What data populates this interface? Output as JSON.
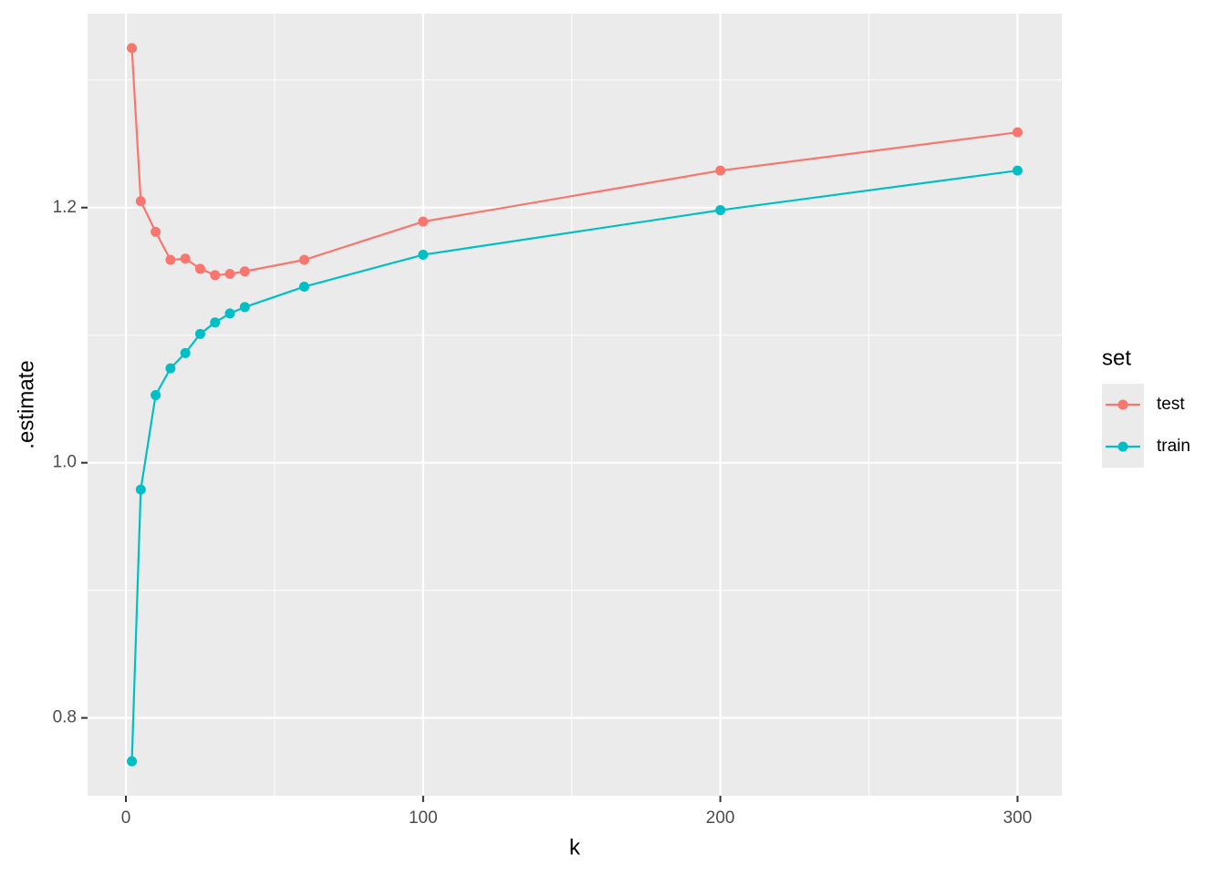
{
  "chart_data": {
    "type": "line",
    "x_label": "k",
    "y_label": ".estimate",
    "legend_title": "set",
    "x": [
      2,
      5,
      10,
      15,
      20,
      25,
      30,
      35,
      40,
      60,
      100,
      200,
      300
    ],
    "series": [
      {
        "name": "test",
        "color": "#F8766D",
        "values": [
          1.325,
          1.205,
          1.181,
          1.159,
          1.16,
          1.152,
          1.147,
          1.148,
          1.15,
          1.159,
          1.189,
          1.229,
          1.259
        ]
      },
      {
        "name": "train",
        "color": "#00BFC4",
        "values": [
          0.766,
          0.979,
          1.053,
          1.074,
          1.086,
          1.101,
          1.11,
          1.117,
          1.122,
          1.138,
          1.163,
          1.198,
          1.229
        ]
      }
    ],
    "xlim": [
      -12.9,
      314.9
    ],
    "xticks": [
      0,
      100,
      200,
      300
    ],
    "x_minor_ticks": [
      50,
      150,
      250
    ],
    "ylim": [
      0.739,
      1.352
    ],
    "yticks": [
      {
        "value": 0.8,
        "label": "0.8"
      },
      {
        "value": 1.0,
        "label": "1.0"
      },
      {
        "value": 1.2,
        "label": "1.2"
      }
    ],
    "y_minor_ticks": [
      0.9,
      1.1,
      1.3
    ],
    "grid": true,
    "legend": "right"
  }
}
